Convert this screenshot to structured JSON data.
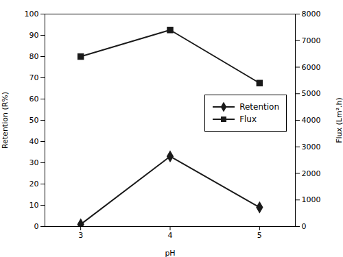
{
  "chart_data": {
    "type": "line",
    "x": [
      3,
      4,
      5
    ],
    "xlabel": "pH",
    "ylabel": "Retention (R%)",
    "y2label": "Flux (Lm².h)",
    "xlim": [
      2.6,
      5.4
    ],
    "xticks": [
      3,
      4,
      5
    ],
    "ylim": [
      0,
      100
    ],
    "yticks": [
      0,
      10,
      20,
      30,
      40,
      50,
      60,
      70,
      80,
      90,
      100
    ],
    "y2lim": [
      0,
      8000
    ],
    "y2ticks": [
      0,
      1000,
      2000,
      3000,
      4000,
      5000,
      6000,
      7000,
      8000
    ],
    "legend": "upper right",
    "series": [
      {
        "name": "Retention",
        "color": "#1a1a1a",
        "marker": "diamond",
        "values": [
          1,
          33,
          9
        ]
      },
      {
        "name": "Flux",
        "color": "#1a1a1a",
        "marker": "square",
        "values": [
          6400,
          7400,
          5400
        ],
        "axis": "y2"
      }
    ]
  }
}
